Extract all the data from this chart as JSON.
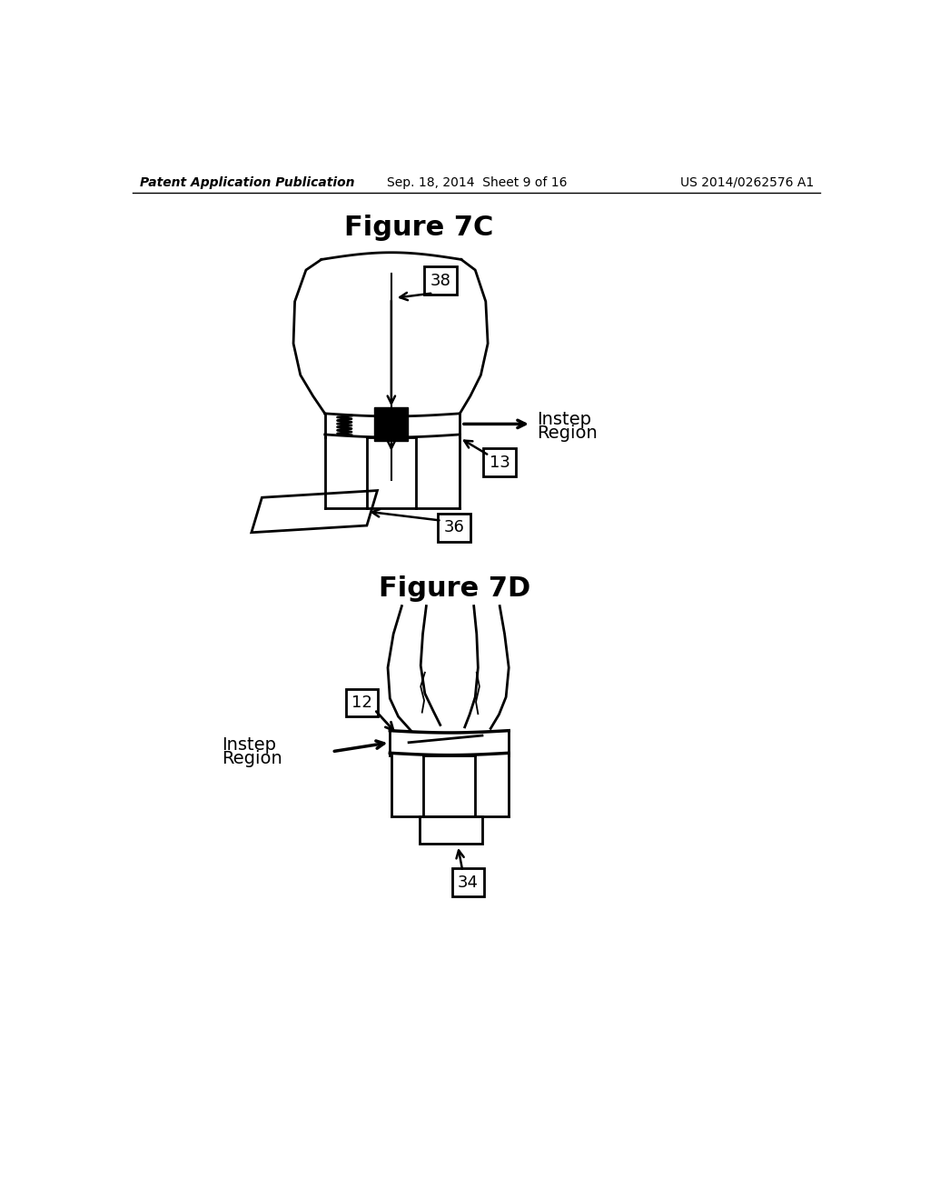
{
  "bg_color": "#ffffff",
  "header_left": "Patent Application Publication",
  "header_mid": "Sep. 18, 2014  Sheet 9 of 16",
  "header_right": "US 2014/0262576 A1",
  "fig7c_title": "Figure 7C",
  "fig7d_title": "Figure 7D",
  "label_38": "38",
  "label_13": "13",
  "label_36": "36",
  "label_12": "12",
  "label_34": "34"
}
